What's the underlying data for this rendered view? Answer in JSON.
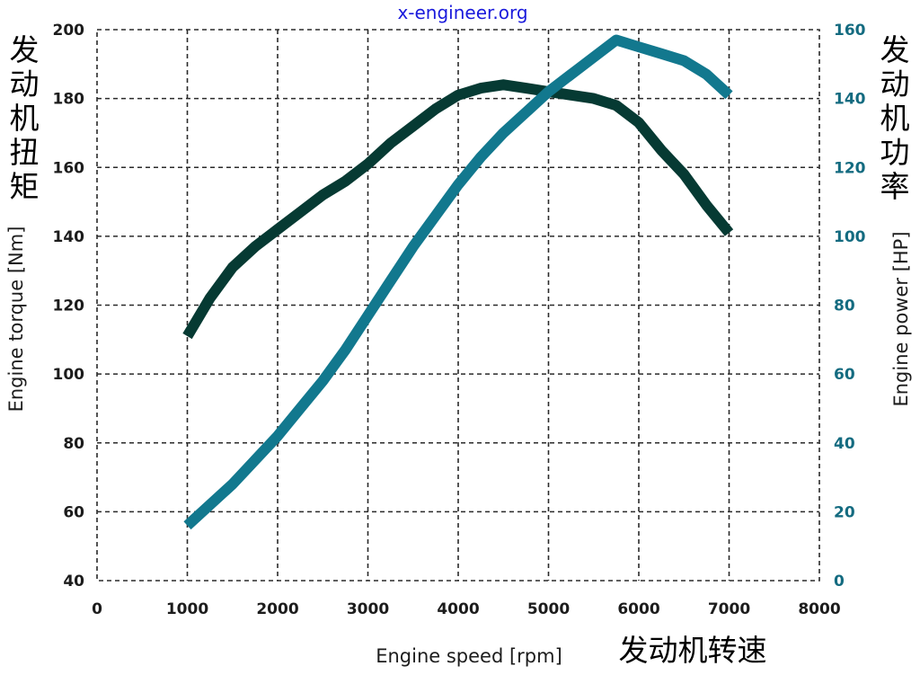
{
  "chart_data": {
    "type": "line",
    "watermark": "x-engineer.org",
    "xlabel": "Engine speed [rpm]",
    "xlabel_cn": "发动机转速",
    "ylabel_left": "Engine torque [Nm]",
    "ylabel_left_cn": "发动机扭矩",
    "ylabel_right": "Engine power [HP]",
    "ylabel_right_cn": "发动机功率",
    "xlim": [
      0,
      8000
    ],
    "ylim_left": [
      40,
      200
    ],
    "ylim_right": [
      0,
      160
    ],
    "x_ticks": [
      "0",
      "1000",
      "2000",
      "3000",
      "4000",
      "5000",
      "6000",
      "7000",
      "8000"
    ],
    "y_left_ticks": [
      "40",
      "60",
      "80",
      "100",
      "120",
      "140",
      "160",
      "180",
      "200"
    ],
    "y_right_ticks": [
      "0",
      "20",
      "40",
      "60",
      "80",
      "100",
      "120",
      "140",
      "160"
    ],
    "grid": true,
    "grid_style": "dashed",
    "colors": {
      "torque": "#063a33",
      "power": "#12788e",
      "tick_left": "#1c1c1c",
      "tick_right": "#146b80",
      "grid": "#2a2a2a",
      "watermark": "#1a1adc"
    },
    "series": [
      {
        "axis": "left",
        "x": [
          1000,
          1250,
          1500,
          1750,
          2000,
          2250,
          2500,
          2750,
          3000,
          3250,
          3500,
          3750,
          4000,
          4250,
          4500,
          4750,
          5000,
          5250,
          5500,
          5750,
          6000,
          6250,
          6500,
          6750,
          7000
        ],
        "values": [
          111,
          122,
          131,
          137,
          142,
          147,
          152,
          156,
          161,
          167,
          172,
          177,
          181,
          183,
          184,
          183,
          182,
          181,
          180,
          178,
          173,
          165,
          158,
          149,
          141
        ]
      },
      {
        "axis": "right",
        "x": [
          1000,
          1250,
          1500,
          1750,
          2000,
          2250,
          2500,
          2750,
          3000,
          3250,
          3500,
          3750,
          4000,
          4250,
          4500,
          4750,
          5000,
          5250,
          5500,
          5750,
          6000,
          6250,
          6500,
          6750,
          7000
        ],
        "values": [
          16,
          22,
          28,
          35,
          42,
          50,
          58,
          67,
          77,
          87,
          97,
          106,
          115,
          123,
          130,
          136,
          142,
          147,
          152,
          157,
          155,
          153,
          151,
          147,
          141
        ]
      }
    ]
  }
}
